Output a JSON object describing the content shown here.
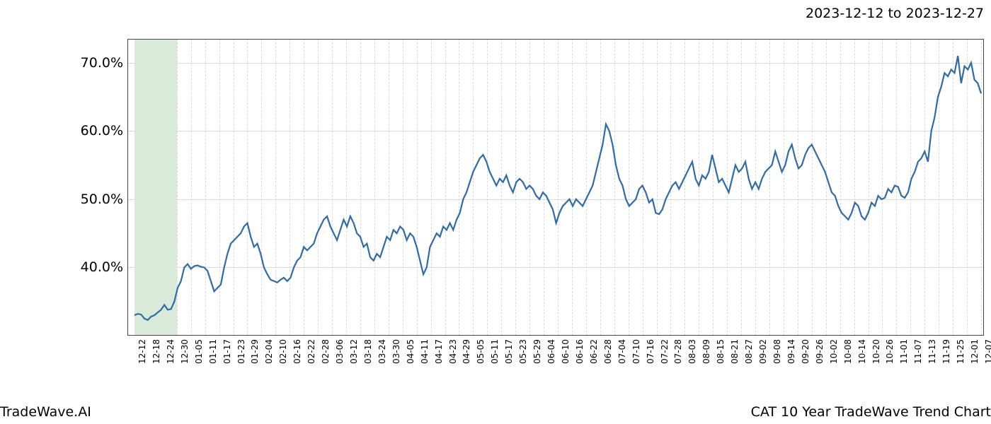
{
  "header": {
    "date_range": "2023-12-12 to 2023-12-27"
  },
  "footer": {
    "left": "TradeWave.AI",
    "right": "CAT 10 Year TradeWave Trend Chart"
  },
  "chart": {
    "type": "line",
    "background_color": "#ffffff",
    "border_color": "#444444",
    "grid_color": "#d9d9d9",
    "highlight_color": "#d9ead8",
    "series_color": "#2f6ba8",
    "line_width": 2.2,
    "y_axis": {
      "min": 30.0,
      "max": 73.5,
      "ticks": [
        40.0,
        50.0,
        60.0,
        70.0
      ],
      "tick_labels": [
        "40.0%",
        "50.0%",
        "60.0%",
        "70.0%"
      ],
      "label_fontsize": 19
    },
    "x_axis": {
      "label_fontsize": 12,
      "label_rotation": -90,
      "labels": [
        "12-12",
        "12-18",
        "12-24",
        "12-30",
        "01-05",
        "01-11",
        "01-17",
        "01-23",
        "01-29",
        "02-04",
        "02-10",
        "02-16",
        "02-22",
        "02-28",
        "03-06",
        "03-12",
        "03-18",
        "03-24",
        "03-30",
        "04-05",
        "04-11",
        "04-17",
        "04-23",
        "04-29",
        "05-05",
        "05-11",
        "05-17",
        "05-23",
        "05-29",
        "06-04",
        "06-10",
        "06-16",
        "06-22",
        "06-28",
        "07-04",
        "07-10",
        "07-16",
        "07-22",
        "07-28",
        "08-03",
        "08-09",
        "08-15",
        "08-21",
        "08-27",
        "09-02",
        "09-08",
        "09-14",
        "09-20",
        "09-26",
        "10-02",
        "10-08",
        "10-14",
        "10-20",
        "10-26",
        "11-01",
        "11-07",
        "11-13",
        "11-19",
        "11-25",
        "12-01",
        "12-07"
      ]
    },
    "highlight_band": {
      "x_start_idx": 0,
      "x_end_idx": 3
    },
    "series": {
      "n_points": 256,
      "values": [
        33.0,
        33.2,
        33.1,
        32.5,
        32.3,
        32.8,
        33.0,
        33.4,
        33.8,
        34.5,
        33.8,
        33.9,
        35.0,
        37.0,
        38.0,
        40.0,
        40.5,
        39.8,
        40.2,
        40.3,
        40.1,
        40.0,
        39.5,
        38.0,
        36.5,
        37.0,
        37.5,
        40.0,
        42.0,
        43.5,
        44.0,
        44.5,
        45.0,
        46.0,
        46.5,
        44.5,
        43.0,
        43.5,
        42.0,
        40.0,
        39.0,
        38.2,
        38.0,
        37.8,
        38.2,
        38.5,
        38.0,
        38.5,
        40.0,
        41.0,
        41.5,
        43.0,
        42.5,
        43.0,
        43.5,
        45.0,
        46.0,
        47.0,
        47.5,
        46.0,
        45.0,
        44.0,
        45.5,
        47.0,
        46.0,
        47.5,
        46.5,
        45.0,
        44.5,
        43.0,
        43.5,
        41.5,
        41.0,
        42.0,
        41.5,
        43.0,
        44.5,
        44.0,
        45.5,
        45.0,
        46.0,
        45.5,
        44.0,
        45.0,
        44.5,
        43.0,
        41.0,
        39.0,
        40.0,
        43.0,
        44.0,
        45.0,
        44.5,
        46.0,
        45.5,
        46.5,
        45.5,
        47.0,
        48.0,
        50.0,
        51.0,
        52.5,
        54.0,
        55.0,
        56.0,
        56.5,
        55.5,
        54.0,
        53.0,
        52.0,
        53.0,
        52.5,
        53.5,
        52.0,
        51.0,
        52.5,
        53.0,
        52.5,
        51.5,
        52.0,
        51.5,
        50.5,
        50.0,
        51.0,
        50.5,
        49.5,
        48.5,
        46.5,
        48.0,
        49.0,
        49.5,
        50.0,
        49.0,
        50.0,
        49.5,
        49.0,
        50.0,
        51.0,
        52.0,
        54.0,
        56.0,
        58.0,
        61.0,
        60.0,
        58.0,
        55.0,
        53.0,
        52.0,
        50.0,
        49.0,
        49.5,
        50.0,
        51.5,
        52.0,
        51.0,
        49.5,
        50.0,
        48.0,
        47.8,
        48.5,
        50.0,
        51.0,
        52.0,
        52.5,
        51.5,
        52.5,
        53.5,
        54.5,
        55.5,
        53.0,
        52.0,
        53.5,
        53.0,
        54.0,
        56.5,
        54.5,
        52.5,
        53.0,
        52.0,
        51.0,
        53.0,
        55.0,
        54.0,
        54.5,
        55.5,
        53.0,
        51.5,
        52.5,
        51.5,
        53.0,
        54.0,
        54.5,
        55.0,
        57.0,
        55.5,
        54.0,
        55.0,
        57.0,
        58.0,
        56.0,
        54.5,
        55.0,
        56.5,
        57.5,
        58.0,
        57.0,
        56.0,
        55.0,
        54.0,
        52.5,
        51.0,
        50.5,
        49.0,
        48.0,
        47.5,
        47.0,
        48.0,
        49.5,
        49.0,
        47.5,
        47.0,
        48.0,
        49.5,
        49.0,
        50.5,
        50.0,
        50.2,
        51.5,
        51.0,
        52.0,
        51.8,
        50.5,
        50.2,
        51.0,
        53.0,
        54.0,
        55.5,
        56.0,
        57.0,
        55.5,
        60.0,
        62.0,
        65.0,
        66.5,
        68.5,
        68.0,
        69.0,
        68.5,
        71.0,
        67.0,
        69.5,
        69.0,
        70.0,
        67.5,
        67.0,
        65.5
      ]
    }
  }
}
